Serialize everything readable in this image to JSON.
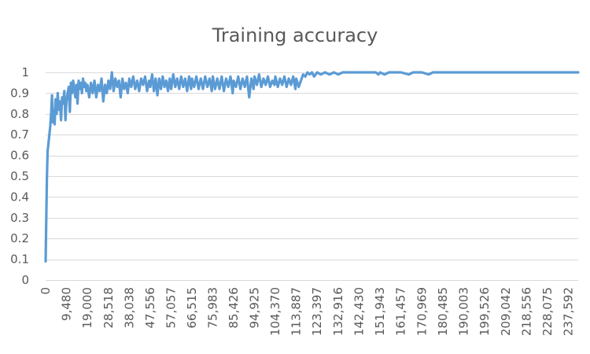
{
  "chart_data": {
    "type": "line",
    "title": "Training accuracy",
    "xlabel": "",
    "ylabel": "",
    "ylim": [
      0,
      1
    ],
    "yticks": [
      0,
      0.1,
      0.2,
      0.3,
      0.4,
      0.5,
      0.6,
      0.7,
      0.8,
      0.9,
      1
    ],
    "ytick_labels": [
      "0",
      "0.1",
      "0.2",
      "0.3",
      "0.4",
      "0.5",
      "0.6",
      "0.7",
      "0.8",
      "0.9",
      "1"
    ],
    "xlim": [
      0,
      242000
    ],
    "xticks": [
      0,
      9480,
      19000,
      28518,
      38038,
      47556,
      57057,
      66515,
      75983,
      85426,
      94925,
      104370,
      113887,
      123397,
      132916,
      142430,
      151943,
      161457,
      170969,
      180485,
      190003,
      199526,
      209042,
      218556,
      228075,
      237592
    ],
    "xtick_labels": [
      "0",
      "9,480",
      "19,000",
      "28,518",
      "38,038",
      "47,556",
      "57,057",
      "66,515",
      "75,983",
      "85,426",
      "94,925",
      "104,370",
      "113,887",
      "123,397",
      "132,916",
      "142,430",
      "151,943",
      "161,457",
      "170,969",
      "180,485",
      "190,003",
      "199,526",
      "209,042",
      "218,556",
      "228,075",
      "237,592"
    ],
    "grid": true,
    "legend": "none",
    "colors": {
      "series": "#5b9bd5",
      "grid": "#d9d9d9",
      "text": "#595959"
    },
    "series": [
      {
        "values": [
          [
            0,
            0.09
          ],
          [
            300,
            0.3
          ],
          [
            600,
            0.5
          ],
          [
            900,
            0.62
          ],
          [
            1300,
            0.66
          ],
          [
            1700,
            0.7
          ],
          [
            2100,
            0.74
          ],
          [
            2500,
            0.8
          ],
          [
            2900,
            0.89
          ],
          [
            3300,
            0.76
          ],
          [
            3700,
            0.82
          ],
          [
            4100,
            0.75
          ],
          [
            4500,
            0.87
          ],
          [
            5000,
            0.8
          ],
          [
            5500,
            0.9
          ],
          [
            6000,
            0.82
          ],
          [
            6500,
            0.86
          ],
          [
            7000,
            0.77
          ],
          [
            7500,
            0.88
          ],
          [
            8000,
            0.85
          ],
          [
            8500,
            0.91
          ],
          [
            9000,
            0.77
          ],
          [
            9480,
            0.86
          ],
          [
            10000,
            0.9
          ],
          [
            10500,
            0.93
          ],
          [
            11000,
            0.81
          ],
          [
            11500,
            0.95
          ],
          [
            12000,
            0.9
          ],
          [
            12500,
            0.96
          ],
          [
            13000,
            0.92
          ],
          [
            13500,
            0.88
          ],
          [
            14000,
            0.94
          ],
          [
            14500,
            0.85
          ],
          [
            15000,
            0.96
          ],
          [
            15500,
            0.92
          ],
          [
            16000,
            0.95
          ],
          [
            16500,
            0.9
          ],
          [
            17000,
            0.97
          ],
          [
            17500,
            0.93
          ],
          [
            18000,
            0.95
          ],
          [
            18500,
            0.91
          ],
          [
            19000,
            0.94
          ],
          [
            19800,
            0.88
          ],
          [
            20600,
            0.95
          ],
          [
            21400,
            0.9
          ],
          [
            22200,
            0.96
          ],
          [
            23000,
            0.88
          ],
          [
            23800,
            0.94
          ],
          [
            24600,
            0.91
          ],
          [
            25400,
            0.97
          ],
          [
            26200,
            0.86
          ],
          [
            27000,
            0.94
          ],
          [
            27800,
            0.9
          ],
          [
            28518,
            0.96
          ],
          [
            29300,
            0.92
          ],
          [
            30100,
            1.0
          ],
          [
            30900,
            0.91
          ],
          [
            31700,
            0.97
          ],
          [
            32500,
            0.93
          ],
          [
            33300,
            0.96
          ],
          [
            34100,
            0.88
          ],
          [
            34900,
            0.97
          ],
          [
            35700,
            0.92
          ],
          [
            36500,
            0.95
          ],
          [
            37300,
            0.9
          ],
          [
            38038,
            0.97
          ],
          [
            38900,
            0.93
          ],
          [
            39800,
            0.98
          ],
          [
            40700,
            0.92
          ],
          [
            41600,
            0.96
          ],
          [
            42500,
            0.91
          ],
          [
            43400,
            0.97
          ],
          [
            44300,
            0.94
          ],
          [
            45200,
            0.98
          ],
          [
            46100,
            0.91
          ],
          [
            47000,
            0.96
          ],
          [
            47556,
            0.93
          ],
          [
            48400,
            0.99
          ],
          [
            49200,
            0.91
          ],
          [
            50000,
            0.97
          ],
          [
            50800,
            0.89
          ],
          [
            51600,
            0.97
          ],
          [
            52400,
            0.92
          ],
          [
            53200,
            0.98
          ],
          [
            54000,
            0.93
          ],
          [
            54800,
            0.96
          ],
          [
            55600,
            0.91
          ],
          [
            56400,
            0.97
          ],
          [
            57057,
            0.92
          ],
          [
            58000,
            0.99
          ],
          [
            58900,
            0.93
          ],
          [
            59800,
            0.97
          ],
          [
            60700,
            0.92
          ],
          [
            61600,
            0.98
          ],
          [
            62500,
            0.93
          ],
          [
            63400,
            0.97
          ],
          [
            64300,
            0.91
          ],
          [
            65200,
            0.98
          ],
          [
            66100,
            0.92
          ],
          [
            66515,
            0.97
          ],
          [
            67500,
            0.93
          ],
          [
            68500,
            0.98
          ],
          [
            69500,
            0.92
          ],
          [
            70500,
            0.97
          ],
          [
            71500,
            0.92
          ],
          [
            72500,
            0.98
          ],
          [
            73500,
            0.93
          ],
          [
            74500,
            0.97
          ],
          [
            75500,
            0.91
          ],
          [
            75983,
            0.98
          ],
          [
            77000,
            0.92
          ],
          [
            78000,
            0.97
          ],
          [
            79000,
            0.92
          ],
          [
            80000,
            0.98
          ],
          [
            81000,
            0.91
          ],
          [
            82000,
            0.97
          ],
          [
            83000,
            0.93
          ],
          [
            84000,
            0.98
          ],
          [
            85000,
            0.9
          ],
          [
            85426,
            0.96
          ],
          [
            86500,
            0.93
          ],
          [
            87500,
            0.98
          ],
          [
            88500,
            0.92
          ],
          [
            89500,
            0.97
          ],
          [
            90500,
            0.93
          ],
          [
            91500,
            0.98
          ],
          [
            92500,
            0.88
          ],
          [
            93500,
            0.97
          ],
          [
            94500,
            0.92
          ],
          [
            94925,
            0.98
          ],
          [
            96000,
            0.94
          ],
          [
            97000,
            0.99
          ],
          [
            98000,
            0.93
          ],
          [
            99000,
            0.97
          ],
          [
            100000,
            0.94
          ],
          [
            101000,
            0.98
          ],
          [
            102000,
            0.93
          ],
          [
            103000,
            0.96
          ],
          [
            104000,
            0.94
          ],
          [
            104370,
            0.98
          ],
          [
            105500,
            0.93
          ],
          [
            106500,
            0.97
          ],
          [
            107500,
            0.94
          ],
          [
            108500,
            0.98
          ],
          [
            109500,
            0.93
          ],
          [
            110500,
            0.97
          ],
          [
            111500,
            0.94
          ],
          [
            112500,
            0.98
          ],
          [
            113500,
            0.92
          ],
          [
            113887,
            0.97
          ],
          [
            115000,
            0.93
          ],
          [
            116000,
            0.96
          ],
          [
            117000,
            0.99
          ],
          [
            118000,
            0.98
          ],
          [
            119000,
            1.0
          ],
          [
            120000,
            0.99
          ],
          [
            121000,
            1.0
          ],
          [
            122000,
            0.98
          ],
          [
            123397,
            1.0
          ],
          [
            125000,
            0.99
          ],
          [
            127000,
            1.0
          ],
          [
            129000,
            0.99
          ],
          [
            131000,
            1.0
          ],
          [
            132916,
            0.99
          ],
          [
            135000,
            1.0
          ],
          [
            140000,
            1.0
          ],
          [
            142430,
            1.0
          ],
          [
            146000,
            1.0
          ],
          [
            150000,
            1.0
          ],
          [
            151200,
            0.99
          ],
          [
            151943,
            1.0
          ],
          [
            154000,
            0.99
          ],
          [
            156000,
            1.0
          ],
          [
            161457,
            1.0
          ],
          [
            165000,
            0.99
          ],
          [
            167000,
            1.0
          ],
          [
            170969,
            1.0
          ],
          [
            174000,
            0.99
          ],
          [
            176000,
            1.0
          ],
          [
            180485,
            1.0
          ],
          [
            190003,
            1.0
          ],
          [
            199526,
            1.0
          ],
          [
            209042,
            1.0
          ],
          [
            218556,
            1.0
          ],
          [
            228075,
            1.0
          ],
          [
            237592,
            1.0
          ],
          [
            242000,
            1.0
          ]
        ]
      }
    ]
  }
}
